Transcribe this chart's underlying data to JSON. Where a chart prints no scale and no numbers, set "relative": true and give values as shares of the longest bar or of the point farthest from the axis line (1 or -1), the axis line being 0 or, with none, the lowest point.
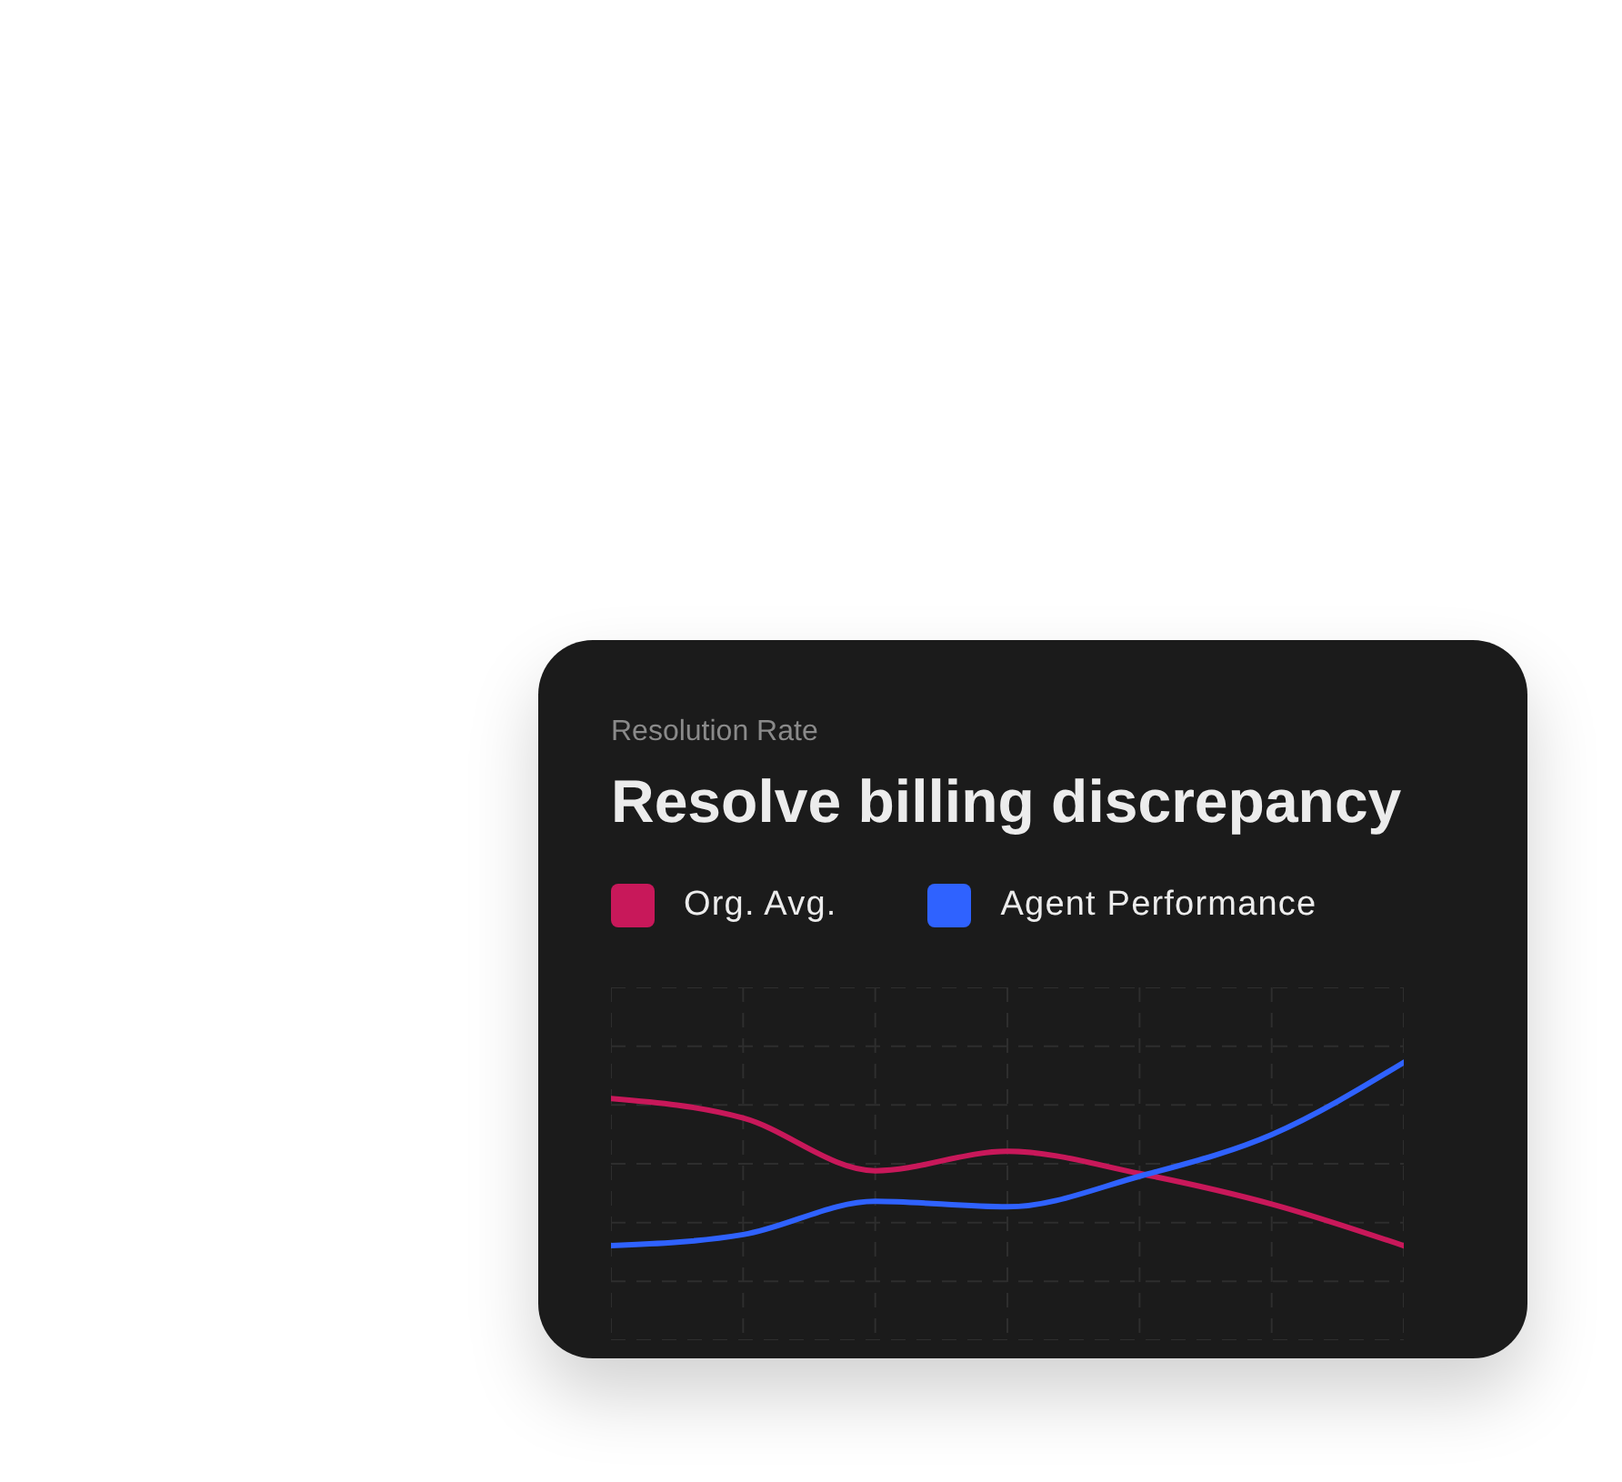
{
  "chart_data": {
    "type": "line",
    "subtitle": "Resolution Rate",
    "title": "Resolve billing discrepancy",
    "relative": true,
    "grid": true,
    "legend": "top left",
    "categories": [
      null,
      null,
      null,
      null,
      null,
      null,
      null
    ],
    "series": [
      {
        "name": "Org. Avg.",
        "color": "#c8185a",
        "values": [
          0.87,
          0.8,
          0.61,
          0.68,
          0.6,
          0.49,
          0.34
        ]
      },
      {
        "name": "Agent Performance",
        "color": "#2f62ff",
        "values": [
          0.34,
          0.38,
          0.5,
          0.48,
          0.59,
          0.74,
          1
        ]
      }
    ]
  }
}
